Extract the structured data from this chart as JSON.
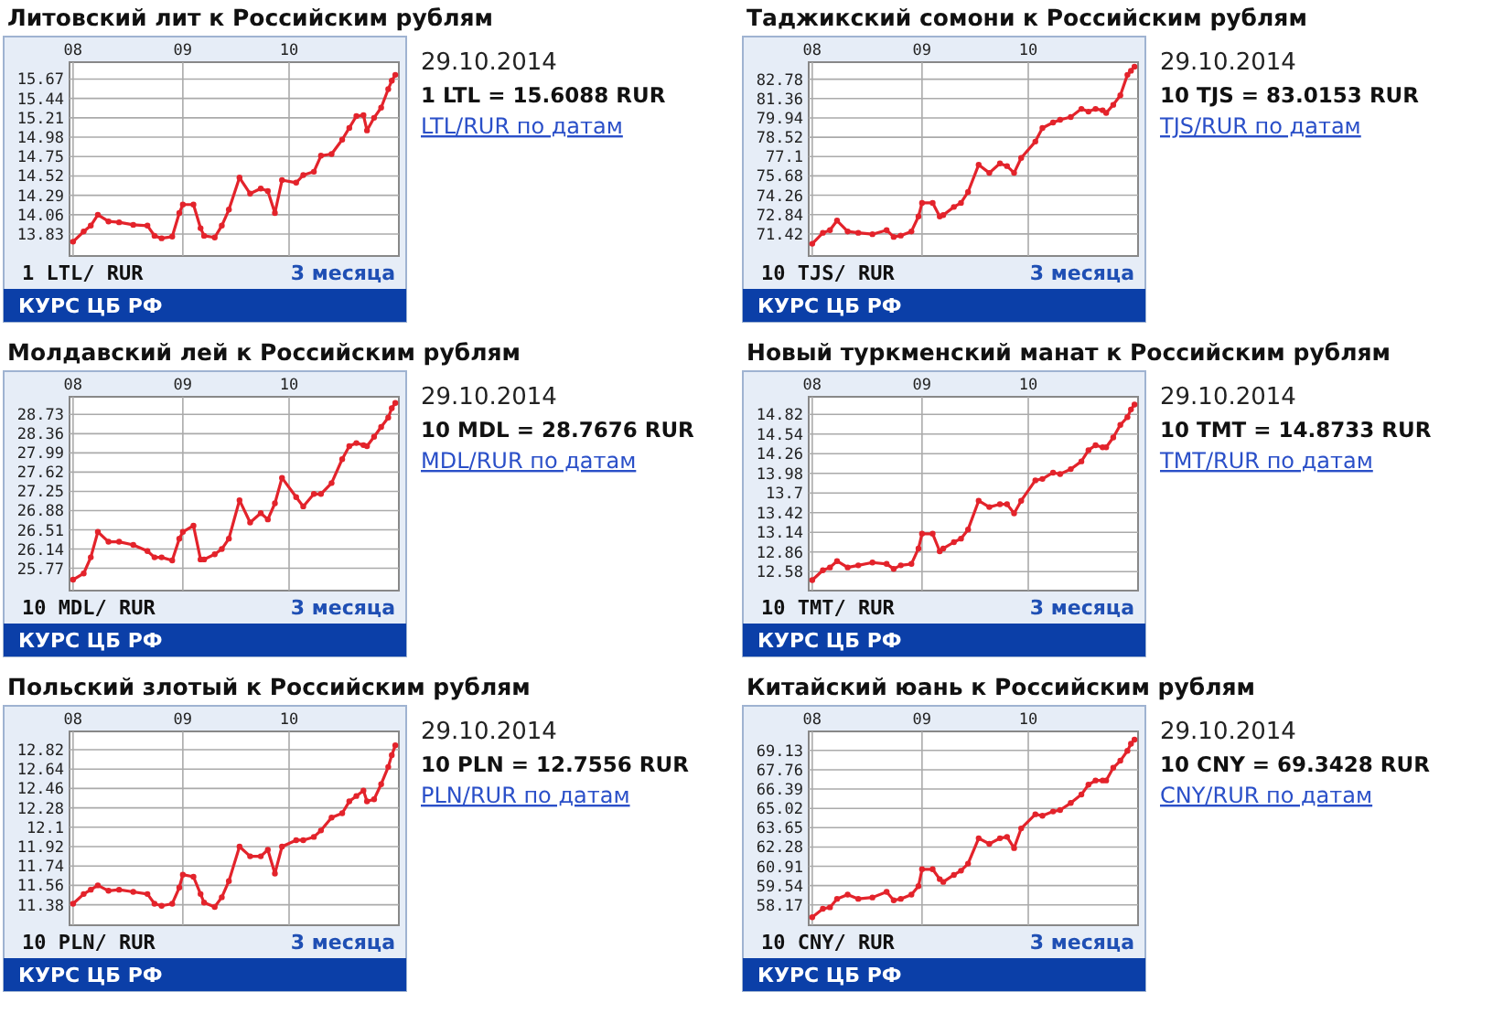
{
  "chart_data": [
    {
      "type": "line",
      "title": "Литовский лит к Российским рублям",
      "subtitle": "3 месяца",
      "ylabel": "1 LTL/ RUR",
      "annotations": [
        "29.10.2014",
        "1 LTL = 15.6088 RUR",
        "LTL/RUR по датам",
        "КУРС ЦБ РФ"
      ],
      "grid": true,
      "marker": "circle",
      "xlim": [
        "2014-07-31",
        "2014-11-01"
      ],
      "xticks": [
        {
          "value": "2014-08-01",
          "label": "08"
        },
        {
          "value": "2014-09-01",
          "label": "09"
        },
        {
          "value": "2014-10-01",
          "label": "10"
        }
      ],
      "ylim": [
        13.57,
        15.87
      ],
      "yticks": [
        13.83,
        14.06,
        14.29,
        14.52,
        14.75,
        14.98,
        15.21,
        15.44,
        15.67
      ],
      "x": [
        "2014-08-01",
        "2014-08-04",
        "2014-08-06",
        "2014-08-08",
        "2014-08-11",
        "2014-08-14",
        "2014-08-18",
        "2014-08-22",
        "2014-08-24",
        "2014-08-26",
        "2014-08-29",
        "2014-08-31",
        "2014-09-01",
        "2014-09-04",
        "2014-09-06",
        "2014-09-07",
        "2014-09-10",
        "2014-09-12",
        "2014-09-14",
        "2014-09-17",
        "2014-09-20",
        "2014-09-23",
        "2014-09-25",
        "2014-09-27",
        "2014-09-29",
        "2014-10-03",
        "2014-10-05",
        "2014-10-08",
        "2014-10-10",
        "2014-10-13",
        "2014-10-16",
        "2014-10-18",
        "2014-10-20",
        "2014-10-22",
        "2014-10-23",
        "2014-10-25",
        "2014-10-27",
        "2014-10-29",
        "2014-10-30",
        "2014-10-31"
      ],
      "series": [
        {
          "color": "#e3232b",
          "values": [
            13.74,
            13.86,
            13.93,
            14.06,
            13.98,
            13.97,
            13.94,
            13.93,
            13.81,
            13.78,
            13.8,
            14.08,
            14.18,
            14.18,
            13.9,
            13.81,
            13.79,
            13.93,
            14.12,
            14.5,
            14.31,
            14.37,
            14.34,
            14.08,
            14.47,
            14.44,
            14.53,
            14.57,
            14.76,
            14.78,
            14.95,
            15.09,
            15.23,
            15.24,
            15.06,
            15.21,
            15.33,
            15.55,
            15.65,
            15.72
          ]
        }
      ]
    },
    {
      "type": "line",
      "title": "Таджикский сомони к Российским рублям",
      "subtitle": "3 месяца",
      "ylabel": "10 TJS/ RUR",
      "annotations": [
        "29.10.2014",
        "10 TJS = 83.0153 RUR",
        "TJS/RUR по датам",
        "КУРС ЦБ РФ"
      ],
      "grid": true,
      "marker": "circle",
      "xlim": [
        "2014-07-31",
        "2014-11-01"
      ],
      "xticks": [
        {
          "value": "2014-08-01",
          "label": "08"
        },
        {
          "value": "2014-09-01",
          "label": "09"
        },
        {
          "value": "2014-10-01",
          "label": "10"
        }
      ],
      "ylim": [
        69.8,
        84.03
      ],
      "yticks": [
        71.42,
        72.84,
        74.26,
        75.68,
        77.1,
        78.52,
        79.94,
        81.36,
        82.78
      ],
      "x": [
        "2014-08-01",
        "2014-08-04",
        "2014-08-06",
        "2014-08-08",
        "2014-08-11",
        "2014-08-14",
        "2014-08-18",
        "2014-08-22",
        "2014-08-24",
        "2014-08-26",
        "2014-08-29",
        "2014-08-31",
        "2014-09-01",
        "2014-09-04",
        "2014-09-06",
        "2014-09-07",
        "2014-09-10",
        "2014-09-12",
        "2014-09-14",
        "2014-09-17",
        "2014-09-20",
        "2014-09-23",
        "2014-09-25",
        "2014-09-27",
        "2014-09-29",
        "2014-10-03",
        "2014-10-05",
        "2014-10-08",
        "2014-10-10",
        "2014-10-13",
        "2014-10-16",
        "2014-10-18",
        "2014-10-20",
        "2014-10-22",
        "2014-10-23",
        "2014-10-25",
        "2014-10-27",
        "2014-10-29",
        "2014-10-30",
        "2014-10-31"
      ],
      "series": [
        {
          "color": "#e3232b",
          "values": [
            70.7,
            71.5,
            71.7,
            72.4,
            71.6,
            71.5,
            71.4,
            71.7,
            71.2,
            71.3,
            71.6,
            72.7,
            73.7,
            73.7,
            72.7,
            72.8,
            73.4,
            73.7,
            74.5,
            76.5,
            75.9,
            76.6,
            76.4,
            75.9,
            77.0,
            78.2,
            79.2,
            79.6,
            79.8,
            80.0,
            80.6,
            80.4,
            80.6,
            80.5,
            80.3,
            80.9,
            81.6,
            83.1,
            83.4,
            83.7
          ]
        }
      ]
    },
    {
      "type": "line",
      "title": "Молдавский лей к Российским рублям",
      "subtitle": "3 месяца",
      "ylabel": "10 MDL/ RUR",
      "annotations": [
        "29.10.2014",
        "10 MDL = 28.7676 RUR",
        "MDL/RUR по датам",
        "КУРС ЦБ РФ"
      ],
      "grid": true,
      "marker": "circle",
      "xlim": [
        "2014-07-31",
        "2014-11-01"
      ],
      "xticks": [
        {
          "value": "2014-08-01",
          "label": "08"
        },
        {
          "value": "2014-09-01",
          "label": "09"
        },
        {
          "value": "2014-10-01",
          "label": "10"
        }
      ],
      "ylim": [
        25.34,
        29.07
      ],
      "yticks": [
        25.77,
        26.14,
        26.51,
        26.88,
        27.25,
        27.62,
        27.99,
        28.36,
        28.73
      ],
      "x": [
        "2014-08-01",
        "2014-08-04",
        "2014-08-06",
        "2014-08-08",
        "2014-08-11",
        "2014-08-14",
        "2014-08-18",
        "2014-08-22",
        "2014-08-24",
        "2014-08-26",
        "2014-08-29",
        "2014-08-31",
        "2014-09-01",
        "2014-09-04",
        "2014-09-06",
        "2014-09-07",
        "2014-09-10",
        "2014-09-12",
        "2014-09-14",
        "2014-09-17",
        "2014-09-20",
        "2014-09-23",
        "2014-09-25",
        "2014-09-27",
        "2014-09-29",
        "2014-10-03",
        "2014-10-05",
        "2014-10-08",
        "2014-10-10",
        "2014-10-13",
        "2014-10-16",
        "2014-10-18",
        "2014-10-20",
        "2014-10-22",
        "2014-10-23",
        "2014-10-25",
        "2014-10-27",
        "2014-10-29",
        "2014-10-30",
        "2014-10-31"
      ],
      "series": [
        {
          "color": "#e3232b",
          "values": [
            25.55,
            25.67,
            25.98,
            26.47,
            26.28,
            26.28,
            26.22,
            26.1,
            25.98,
            25.98,
            25.92,
            26.34,
            26.47,
            26.59,
            25.94,
            25.94,
            26.04,
            26.14,
            26.34,
            27.08,
            26.65,
            26.83,
            26.71,
            27.02,
            27.51,
            27.14,
            26.96,
            27.2,
            27.2,
            27.41,
            27.87,
            28.12,
            28.18,
            28.14,
            28.12,
            28.3,
            28.49,
            28.67,
            28.85,
            28.95
          ]
        }
      ]
    },
    {
      "type": "line",
      "title": "Новый туркменский манат к Российским рублям",
      "subtitle": "3 месяца",
      "ylabel": "10 TMT/ RUR",
      "annotations": [
        "29.10.2014",
        "10 TMT = 14.8733 RUR",
        "TMT/RUR по датам",
        "КУРС ЦБ РФ"
      ],
      "grid": true,
      "marker": "circle",
      "xlim": [
        "2014-07-31",
        "2014-11-01"
      ],
      "xticks": [
        {
          "value": "2014-08-01",
          "label": "08"
        },
        {
          "value": "2014-09-01",
          "label": "09"
        },
        {
          "value": "2014-10-01",
          "label": "10"
        }
      ],
      "ylim": [
        12.31,
        15.07
      ],
      "yticks": [
        12.58,
        12.86,
        13.14,
        13.42,
        13.7,
        13.98,
        14.26,
        14.54,
        14.82
      ],
      "x": [
        "2014-08-01",
        "2014-08-04",
        "2014-08-06",
        "2014-08-08",
        "2014-08-11",
        "2014-08-14",
        "2014-08-18",
        "2014-08-22",
        "2014-08-24",
        "2014-08-26",
        "2014-08-29",
        "2014-08-31",
        "2014-09-01",
        "2014-09-04",
        "2014-09-06",
        "2014-09-07",
        "2014-09-10",
        "2014-09-12",
        "2014-09-14",
        "2014-09-17",
        "2014-09-20",
        "2014-09-23",
        "2014-09-25",
        "2014-09-27",
        "2014-09-29",
        "2014-10-03",
        "2014-10-05",
        "2014-10-08",
        "2014-10-10",
        "2014-10-13",
        "2014-10-16",
        "2014-10-18",
        "2014-10-20",
        "2014-10-22",
        "2014-10-23",
        "2014-10-25",
        "2014-10-27",
        "2014-10-29",
        "2014-10-30",
        "2014-10-31"
      ],
      "series": [
        {
          "color": "#e3232b",
          "values": [
            12.46,
            12.6,
            12.64,
            12.73,
            12.64,
            12.67,
            12.71,
            12.69,
            12.62,
            12.67,
            12.69,
            12.91,
            13.12,
            13.12,
            12.87,
            12.91,
            13.0,
            13.05,
            13.18,
            13.59,
            13.5,
            13.54,
            13.54,
            13.41,
            13.59,
            13.88,
            13.9,
            13.99,
            13.97,
            14.04,
            14.15,
            14.31,
            14.38,
            14.35,
            14.35,
            14.49,
            14.67,
            14.78,
            14.89,
            14.96
          ]
        }
      ]
    },
    {
      "type": "line",
      "title": "Польский злотый к Российским рублям",
      "subtitle": "3 месяца",
      "ylabel": "10 PLN/ RUR",
      "annotations": [
        "29.10.2014",
        "10 PLN = 12.7556 RUR",
        "PLN/RUR по датам",
        "КУРС ЦБ РФ"
      ],
      "grid": true,
      "marker": "circle",
      "xlim": [
        "2014-07-31",
        "2014-11-01"
      ],
      "xticks": [
        {
          "value": "2014-08-01",
          "label": "08"
        },
        {
          "value": "2014-09-01",
          "label": "09"
        },
        {
          "value": "2014-10-01",
          "label": "10"
        }
      ],
      "ylim": [
        11.19,
        12.99
      ],
      "yticks": [
        11.38,
        11.56,
        11.74,
        11.92,
        12.1,
        12.28,
        12.46,
        12.64,
        12.82
      ],
      "x": [
        "2014-08-01",
        "2014-08-04",
        "2014-08-06",
        "2014-08-08",
        "2014-08-11",
        "2014-08-14",
        "2014-08-18",
        "2014-08-22",
        "2014-08-24",
        "2014-08-26",
        "2014-08-29",
        "2014-08-31",
        "2014-09-01",
        "2014-09-04",
        "2014-09-06",
        "2014-09-07",
        "2014-09-10",
        "2014-09-12",
        "2014-09-14",
        "2014-09-17",
        "2014-09-20",
        "2014-09-23",
        "2014-09-25",
        "2014-09-27",
        "2014-09-29",
        "2014-10-03",
        "2014-10-05",
        "2014-10-08",
        "2014-10-10",
        "2014-10-13",
        "2014-10-16",
        "2014-10-18",
        "2014-10-20",
        "2014-10-22",
        "2014-10-23",
        "2014-10-25",
        "2014-10-27",
        "2014-10-29",
        "2014-10-30",
        "2014-10-31"
      ],
      "series": [
        {
          "color": "#e3232b",
          "values": [
            11.39,
            11.48,
            11.52,
            11.56,
            11.51,
            11.52,
            11.5,
            11.48,
            11.39,
            11.37,
            11.39,
            11.54,
            11.66,
            11.64,
            11.48,
            11.4,
            11.36,
            11.45,
            11.6,
            11.92,
            11.83,
            11.83,
            11.89,
            11.67,
            11.92,
            11.98,
            11.98,
            12.01,
            12.07,
            12.19,
            12.23,
            12.34,
            12.39,
            12.44,
            12.34,
            12.36,
            12.5,
            12.66,
            12.77,
            12.86
          ]
        }
      ]
    },
    {
      "type": "line",
      "title": "Китайский юань к Российским рублям",
      "subtitle": "3 месяца",
      "ylabel": "10 CNY/ RUR",
      "annotations": [
        "29.10.2014",
        "10 CNY = 69.3428 RUR",
        "CNY/RUR по датам",
        "КУРС ЦБ РФ"
      ],
      "grid": true,
      "marker": "circle",
      "xlim": [
        "2014-07-31",
        "2014-11-01"
      ],
      "xticks": [
        {
          "value": "2014-08-01",
          "label": "08"
        },
        {
          "value": "2014-09-01",
          "label": "09"
        },
        {
          "value": "2014-10-01",
          "label": "10"
        }
      ],
      "ylim": [
        56.73,
        70.48
      ],
      "yticks": [
        58.17,
        59.54,
        60.91,
        62.28,
        63.65,
        65.02,
        66.39,
        67.76,
        69.13
      ],
      "x": [
        "2014-08-01",
        "2014-08-04",
        "2014-08-06",
        "2014-08-08",
        "2014-08-11",
        "2014-08-14",
        "2014-08-18",
        "2014-08-22",
        "2014-08-24",
        "2014-08-26",
        "2014-08-29",
        "2014-08-31",
        "2014-09-01",
        "2014-09-04",
        "2014-09-06",
        "2014-09-07",
        "2014-09-10",
        "2014-09-12",
        "2014-09-14",
        "2014-09-17",
        "2014-09-20",
        "2014-09-23",
        "2014-09-25",
        "2014-09-27",
        "2014-09-29",
        "2014-10-03",
        "2014-10-05",
        "2014-10-08",
        "2014-10-10",
        "2014-10-13",
        "2014-10-16",
        "2014-10-18",
        "2014-10-20",
        "2014-10-22",
        "2014-10-23",
        "2014-10-25",
        "2014-10-27",
        "2014-10-29",
        "2014-10-30",
        "2014-10-31"
      ],
      "series": [
        {
          "color": "#e3232b",
          "values": [
            57.3,
            57.9,
            58.0,
            58.6,
            58.9,
            58.6,
            58.7,
            59.1,
            58.5,
            58.6,
            58.9,
            59.5,
            60.7,
            60.7,
            60.0,
            59.8,
            60.3,
            60.6,
            61.1,
            62.9,
            62.5,
            62.9,
            63.0,
            62.2,
            63.6,
            64.6,
            64.5,
            64.8,
            64.9,
            65.4,
            66.0,
            66.7,
            67.0,
            67.0,
            67.0,
            67.9,
            68.4,
            69.1,
            69.6,
            69.9
          ]
        }
      ]
    }
  ]
}
